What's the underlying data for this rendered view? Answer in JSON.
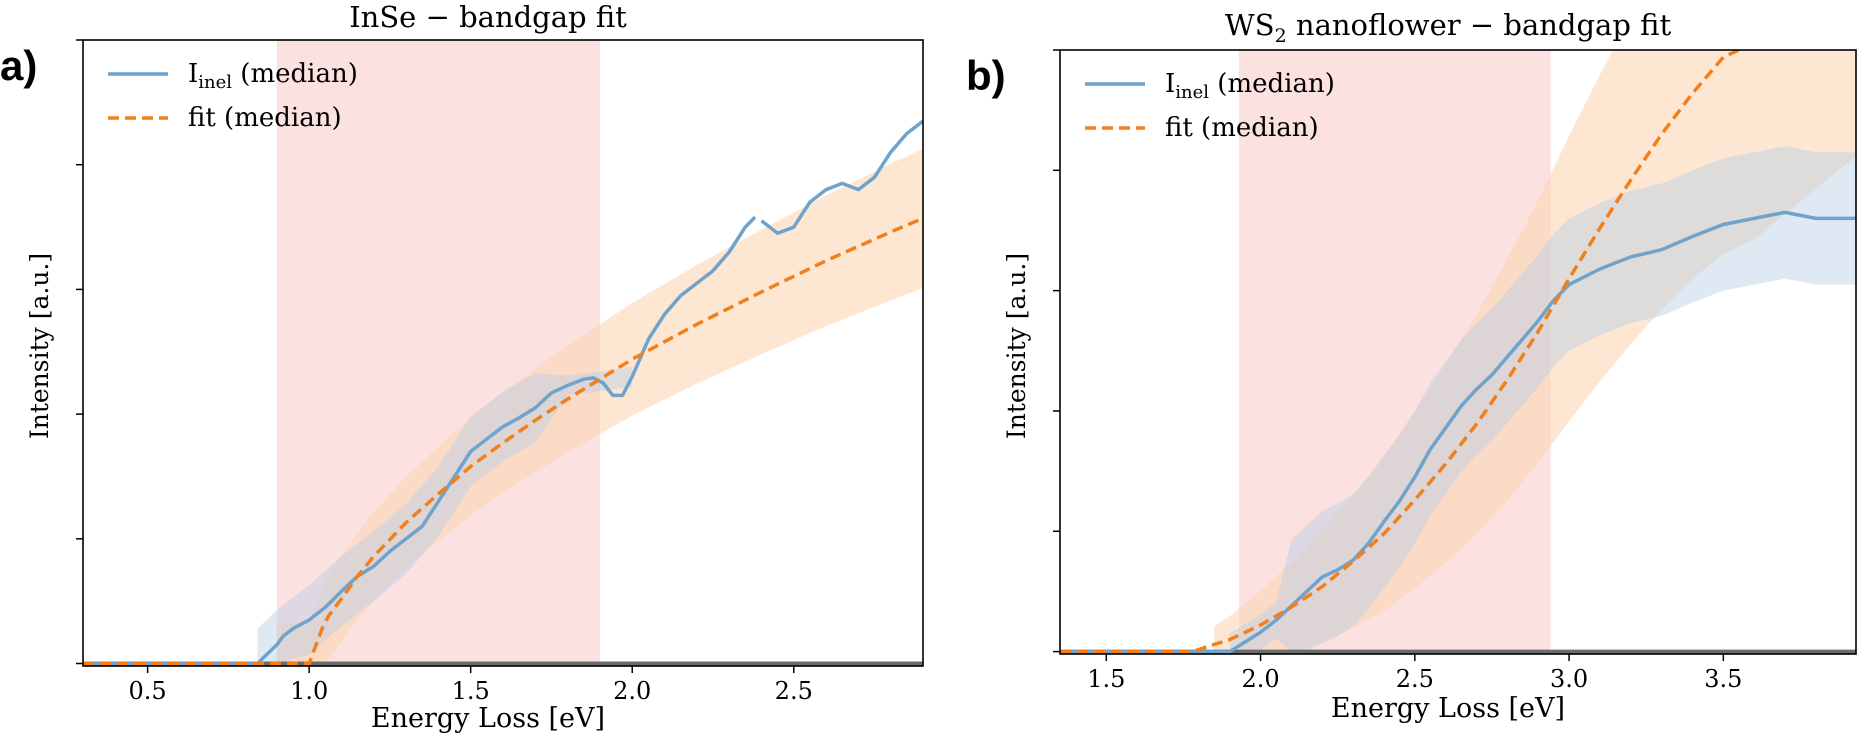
{
  "colors": {
    "data_line": "#6fa3cc",
    "data_band": "#b8cfe6",
    "fit_line": "#f07f1e",
    "fit_band": "#fdd7b4",
    "window": "#f7c9c6",
    "axis": "#000000",
    "baseline": "#6b6b6b"
  },
  "chart_data": [
    {
      "type": "line",
      "panel_label": "a)",
      "title": "InSe − bandgap fit",
      "xlabel": "Energy Loss [eV]",
      "ylabel": "Intensity [a.u.]",
      "xlim": [
        0.3,
        2.9
      ],
      "ylim": [
        -0.02,
        5.0
      ],
      "x_ticks": [
        0.5,
        1.0,
        1.5,
        2.0,
        2.5
      ],
      "x_tick_labels": [
        "0.5",
        "1.0",
        "1.5",
        "2.0",
        "2.5"
      ],
      "y_tick_labels_shown": false,
      "fit_window": [
        0.9,
        1.9
      ],
      "legend": {
        "position": "top-left",
        "entries": [
          {
            "label": "I",
            "subscript": "inel",
            "suffix": " (median)",
            "style": "solid"
          },
          {
            "label": "fit (median)",
            "style": "dashed"
          }
        ]
      },
      "series": [
        {
          "name": "Iinel (median)",
          "x": [
            0.3,
            0.84,
            0.86,
            0.88,
            0.9,
            0.92,
            0.95,
            1.0,
            1.05,
            1.1,
            1.15,
            1.2,
            1.25,
            1.3,
            1.35,
            1.4,
            1.45,
            1.5,
            1.55,
            1.6,
            1.65,
            1.7,
            1.75,
            1.8,
            1.85,
            1.88,
            1.91,
            1.94,
            1.97,
            2.0,
            2.05,
            2.1,
            2.15,
            2.2,
            2.25,
            2.3,
            2.35,
            2.38,
            null,
            2.4,
            2.45,
            2.5,
            2.55,
            2.6,
            2.65,
            2.7,
            2.75,
            2.8,
            2.85,
            2.9
          ],
          "y": [
            0.0,
            0.0,
            0.05,
            0.1,
            0.15,
            0.22,
            0.28,
            0.35,
            0.45,
            0.58,
            0.7,
            0.78,
            0.9,
            1.0,
            1.1,
            1.3,
            1.5,
            1.7,
            1.8,
            1.9,
            1.97,
            2.05,
            2.17,
            2.23,
            2.28,
            2.29,
            2.25,
            2.15,
            2.15,
            2.3,
            2.6,
            2.8,
            2.95,
            3.05,
            3.15,
            3.3,
            3.5,
            3.58,
            null,
            3.55,
            3.45,
            3.5,
            3.7,
            3.8,
            3.85,
            3.8,
            3.9,
            4.1,
            4.25,
            4.35
          ]
        },
        {
          "name": "fit (median)",
          "x": [
            0.3,
            1.0,
            1.02,
            1.04,
            1.06,
            1.1,
            1.15,
            1.2,
            1.3,
            1.4,
            1.5,
            1.6,
            1.7,
            1.8,
            1.9,
            2.0,
            2.2,
            2.4,
            2.6,
            2.8,
            2.9
          ],
          "y": [
            0.0,
            0.0,
            0.14,
            0.28,
            0.38,
            0.52,
            0.7,
            0.86,
            1.13,
            1.36,
            1.58,
            1.77,
            1.95,
            2.12,
            2.28,
            2.44,
            2.72,
            2.98,
            3.23,
            3.46,
            3.57
          ]
        }
      ]
    },
    {
      "type": "line",
      "panel_label": "b)",
      "title_prefix": "WS",
      "title_subscript": "2",
      "title_suffix": " nanoflower − bandgap fit",
      "xlabel": "Energy Loss [eV]",
      "ylabel": "Intensity [a.u.]",
      "xlim": [
        1.35,
        3.93
      ],
      "ylim": [
        -0.02,
        5.0
      ],
      "x_ticks": [
        1.5,
        2.0,
        2.5,
        3.0,
        3.5
      ],
      "x_tick_labels": [
        "1.5",
        "2.0",
        "2.5",
        "3.0",
        "3.5"
      ],
      "y_tick_labels_shown": false,
      "fit_window": [
        1.93,
        2.94
      ],
      "legend": {
        "position": "top-left",
        "entries": [
          {
            "label": "I",
            "subscript": "inel",
            "suffix": " (median)",
            "style": "solid"
          },
          {
            "label": "fit (median)",
            "style": "dashed"
          }
        ]
      },
      "series": [
        {
          "name": "Iinel (median)",
          "x": [
            1.35,
            1.9,
            1.95,
            2.0,
            2.05,
            2.1,
            2.15,
            2.2,
            2.25,
            2.3,
            2.35,
            2.4,
            2.45,
            2.5,
            2.55,
            2.6,
            2.65,
            2.7,
            2.75,
            2.8,
            2.85,
            2.9,
            2.95,
            3.0,
            3.1,
            3.2,
            3.3,
            3.4,
            3.5,
            3.6,
            3.7,
            3.8,
            3.93
          ],
          "y": [
            0.0,
            0.0,
            0.08,
            0.16,
            0.26,
            0.38,
            0.5,
            0.62,
            0.68,
            0.76,
            0.9,
            1.08,
            1.25,
            1.45,
            1.68,
            1.86,
            2.04,
            2.18,
            2.3,
            2.45,
            2.6,
            2.75,
            2.92,
            3.05,
            3.18,
            3.28,
            3.34,
            3.45,
            3.55,
            3.6,
            3.65,
            3.6,
            3.6
          ]
        },
        {
          "name": "fit (median)",
          "x": [
            1.35,
            1.78,
            1.85,
            1.9,
            2.0,
            2.1,
            2.2,
            2.3,
            2.4,
            2.5,
            2.6,
            2.7,
            2.8,
            2.9,
            3.0,
            3.1,
            3.2,
            3.3,
            3.4,
            3.5,
            3.55
          ],
          "y": [
            0.0,
            0.0,
            0.06,
            0.1,
            0.22,
            0.37,
            0.54,
            0.75,
            0.98,
            1.26,
            1.56,
            1.89,
            2.26,
            2.66,
            3.1,
            3.52,
            3.92,
            4.3,
            4.64,
            4.94,
            5.0
          ]
        }
      ]
    }
  ]
}
